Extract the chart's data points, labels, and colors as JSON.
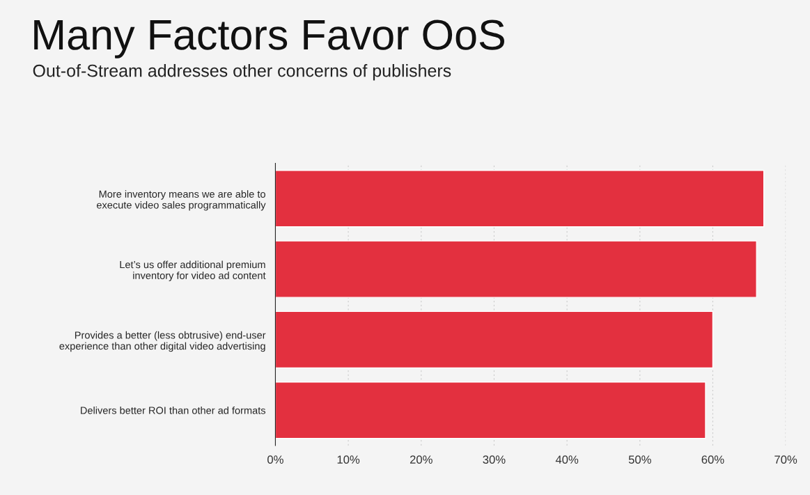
{
  "chart_data": {
    "type": "bar",
    "orientation": "horizontal",
    "title": "Many Factors Favor OoS",
    "subtitle": "Out-of-Stream addresses other concerns of publishers",
    "categories": [
      "More inventory means we are able to\nexecute video sales programmatically",
      "Let’s us offer additional premium\ninventory for video ad content",
      "Provides a better (less obtrusive) end-user\nexperience than other digital video advertising",
      "Delivers better ROI than other ad formats"
    ],
    "values": [
      67,
      66,
      60,
      59
    ],
    "color": "#e3303f",
    "xlim": [
      0,
      70
    ],
    "xticks": [
      {
        "value": 0,
        "label": "0%"
      },
      {
        "value": 10,
        "label": "10%"
      },
      {
        "value": 20,
        "label": "20%"
      },
      {
        "value": 30,
        "label": "30%"
      },
      {
        "value": 40,
        "label": "40%"
      },
      {
        "value": 50,
        "label": "50%"
      },
      {
        "value": 60,
        "label": "60%"
      },
      {
        "value": 70,
        "label": "70%"
      }
    ],
    "grid": "x"
  }
}
